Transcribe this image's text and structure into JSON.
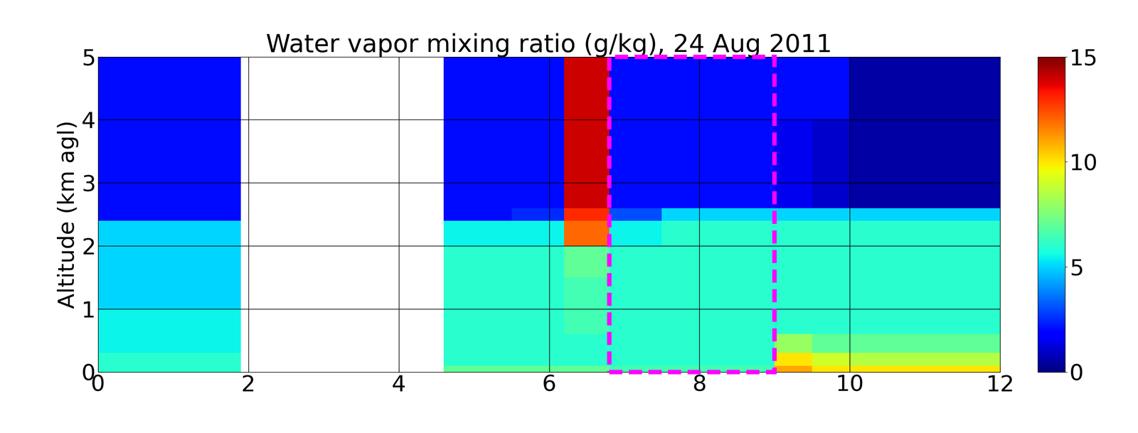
{
  "chart_data": {
    "type": "heatmap",
    "title": "Water vapor mixing ratio (g/kg), 24 Aug 2011",
    "y_label": "Altitude (km agl)",
    "xlim": [
      0,
      12
    ],
    "ylim": [
      0,
      5
    ],
    "xticks": [
      0,
      2,
      4,
      6,
      8,
      10,
      12
    ],
    "yticks": [
      0,
      1,
      2,
      3,
      4,
      5
    ],
    "grid": true,
    "color": "jet",
    "x_edges": [
      0,
      1,
      1.9,
      4.6,
      5.5,
      6.2,
      6.8,
      7.5,
      8.2,
      9,
      9.5,
      10,
      11,
      12
    ],
    "y_edges": [
      0,
      0.1,
      0.3,
      0.6,
      1,
      1.5,
      2,
      2.4,
      2.6,
      3,
      4,
      5
    ],
    "cells": [
      [
        6,
        6,
        null,
        7,
        7,
        7,
        6.5,
        6.5,
        6.5,
        11,
        10,
        10,
        10
      ],
      [
        6,
        6,
        null,
        6,
        6,
        6,
        6,
        6,
        6,
        10,
        9,
        8.5,
        8.5
      ],
      [
        5.5,
        5.5,
        null,
        6,
        6,
        6,
        6,
        6,
        6,
        8,
        7,
        7,
        7
      ],
      [
        5.5,
        5.5,
        null,
        6,
        6,
        6.5,
        6,
        6,
        6,
        6,
        6,
        6,
        6
      ],
      [
        5,
        5,
        null,
        6,
        6,
        6.5,
        6,
        6,
        6,
        6,
        6,
        6,
        6
      ],
      [
        5,
        5,
        null,
        6,
        6,
        7,
        6,
        6,
        6,
        6,
        6,
        6,
        6
      ],
      [
        5,
        5,
        null,
        5.5,
        5.5,
        12,
        5.5,
        6,
        6,
        6,
        6,
        6,
        6
      ],
      [
        2,
        2,
        null,
        2,
        2.5,
        13,
        3,
        5,
        5,
        5,
        5,
        5,
        5
      ],
      [
        2,
        2,
        null,
        2,
        2,
        14,
        2,
        2,
        2,
        1.5,
        1,
        0.5,
        0.5
      ],
      [
        2,
        2,
        null,
        2,
        2,
        14,
        2,
        2,
        2,
        1.5,
        1,
        0.5,
        0.5
      ],
      [
        2,
        2,
        null,
        2,
        2,
        14,
        2,
        2,
        2,
        2,
        2,
        0.5,
        0.5
      ]
    ],
    "colorbar": {
      "range": [
        0,
        15
      ],
      "ticks": [
        0,
        5,
        10,
        15
      ]
    },
    "highlight": {
      "x": [
        6.8,
        9
      ],
      "y": [
        0,
        5
      ]
    }
  }
}
